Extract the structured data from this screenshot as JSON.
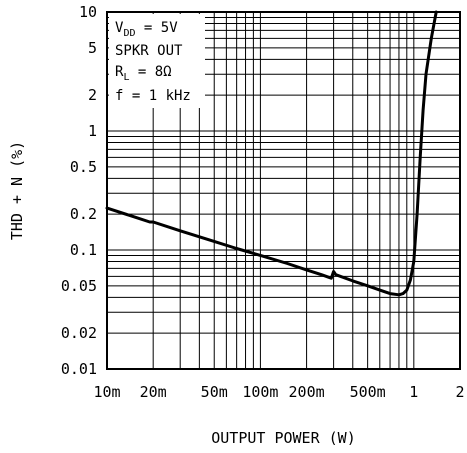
{
  "chart_data": {
    "type": "line",
    "title": "",
    "xlabel": "OUTPUT POWER (W)",
    "ylabel": "THD + N (%)",
    "xscale": "log",
    "yscale": "log",
    "xlim": [
      0.01,
      2
    ],
    "ylim": [
      0.01,
      10
    ],
    "grid": true,
    "x_ticks": [
      0.01,
      0.02,
      0.05,
      0.1,
      0.2,
      0.5,
      1,
      2
    ],
    "x_tick_labels": [
      "10m",
      "20m",
      "50m",
      "100m",
      "200m",
      "500m",
      "1",
      "2"
    ],
    "y_ticks": [
      0.01,
      0.02,
      0.05,
      0.1,
      0.2,
      0.5,
      1,
      2,
      5,
      10
    ],
    "y_tick_labels": [
      "0.01",
      "0.02",
      "0.05",
      "0.1",
      "0.2",
      "0.5",
      "1",
      "2",
      "5",
      "10"
    ],
    "annotations": {
      "vdd": {
        "main": "V",
        "sub": "DD",
        "rest": " = 5V"
      },
      "spkr": "SPKR OUT",
      "rl": {
        "main": "R",
        "sub": "L",
        "rest": " = 8Ω"
      },
      "freq": "f = 1 kHz"
    },
    "series": [
      {
        "x": [
          0.01,
          0.015,
          0.019,
          0.02,
          0.03,
          0.05,
          0.07,
          0.1,
          0.15,
          0.2,
          0.25,
          0.29,
          0.3,
          0.31,
          0.4,
          0.5,
          0.6,
          0.7,
          0.8,
          0.85,
          0.9,
          0.95,
          1.0,
          1.05,
          1.1,
          1.15,
          1.2,
          1.3,
          1.4
        ],
        "y": [
          0.225,
          0.19,
          0.172,
          0.172,
          0.145,
          0.118,
          0.103,
          0.09,
          0.077,
          0.068,
          0.062,
          0.058,
          0.066,
          0.062,
          0.055,
          0.05,
          0.046,
          0.043,
          0.042,
          0.043,
          0.046,
          0.056,
          0.08,
          0.2,
          0.6,
          1.5,
          3.0,
          6.0,
          10.0
        ]
      }
    ]
  }
}
